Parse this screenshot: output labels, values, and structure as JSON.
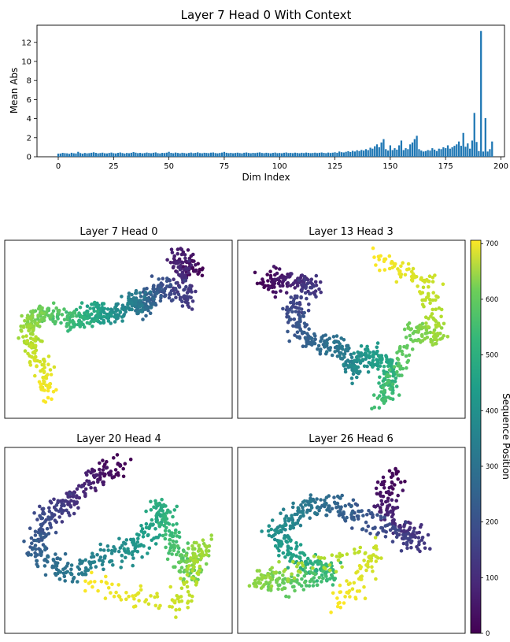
{
  "chart_data": [
    {
      "type": "bar",
      "title": "Layer 7 Head 0 With Context",
      "xlabel": "Dim Index",
      "ylabel": "Mean Abs",
      "xlim": [
        -9.6,
        201.6
      ],
      "ylim": [
        0,
        13.8
      ],
      "xticks": [
        0,
        25,
        50,
        75,
        100,
        125,
        150,
        175,
        200
      ],
      "yticks": [
        0,
        2,
        4,
        6,
        8,
        10,
        12
      ],
      "bar_color": "#1f77b4",
      "x": "0..191",
      "values": [
        0.33,
        0.34,
        0.41,
        0.38,
        0.36,
        0.31,
        0.42,
        0.37,
        0.35,
        0.52,
        0.39,
        0.33,
        0.4,
        0.36,
        0.38,
        0.42,
        0.47,
        0.41,
        0.36,
        0.39,
        0.43,
        0.37,
        0.35,
        0.4,
        0.44,
        0.38,
        0.35,
        0.41,
        0.45,
        0.39,
        0.34,
        0.4,
        0.37,
        0.42,
        0.49,
        0.43,
        0.38,
        0.41,
        0.36,
        0.39,
        0.44,
        0.4,
        0.37,
        0.42,
        0.46,
        0.38,
        0.35,
        0.41,
        0.39,
        0.43,
        0.52,
        0.41,
        0.37,
        0.44,
        0.4,
        0.36,
        0.42,
        0.39,
        0.35,
        0.4,
        0.44,
        0.38,
        0.41,
        0.46,
        0.39,
        0.37,
        0.42,
        0.4,
        0.38,
        0.43,
        0.45,
        0.39,
        0.36,
        0.4,
        0.44,
        0.51,
        0.42,
        0.38,
        0.41,
        0.37,
        0.4,
        0.43,
        0.39,
        0.36,
        0.42,
        0.45,
        0.4,
        0.37,
        0.41,
        0.39,
        0.43,
        0.46,
        0.4,
        0.38,
        0.42,
        0.39,
        0.36,
        0.41,
        0.44,
        0.38,
        0.4,
        0.37,
        0.42,
        0.45,
        0.39,
        0.41,
        0.38,
        0.43,
        0.4,
        0.37,
        0.42,
        0.39,
        0.44,
        0.41,
        0.38,
        0.4,
        0.43,
        0.39,
        0.42,
        0.45,
        0.41,
        0.38,
        0.44,
        0.4,
        0.43,
        0.47,
        0.42,
        0.55,
        0.48,
        0.45,
        0.52,
        0.58,
        0.5,
        0.62,
        0.55,
        0.68,
        0.6,
        0.72,
        0.65,
        0.8,
        0.7,
        0.95,
        0.85,
        1.1,
        1.3,
        1.0,
        1.5,
        1.85,
        0.8,
        0.65,
        1.2,
        0.7,
        0.9,
        0.75,
        1.2,
        1.7,
        0.7,
        0.9,
        0.8,
        1.3,
        1.5,
        1.85,
        2.2,
        0.8,
        0.65,
        0.55,
        0.6,
        0.7,
        0.65,
        0.9,
        0.75,
        0.6,
        0.85,
        0.8,
        1.0,
        0.9,
        1.2,
        0.85,
        1.0,
        1.15,
        1.3,
        1.6,
        1.15,
        2.5,
        1.05,
        1.4,
        0.85,
        1.7,
        4.6,
        1.55,
        0.6,
        13.2,
        0.55,
        4.05,
        0.55,
        0.8,
        1.6
      ]
    },
    {
      "type": "scatter",
      "panels": [
        {
          "title": "Layer 7  Head 0"
        },
        {
          "title": "Layer 13  Head 3"
        },
        {
          "title": "Layer 20  Head 4"
        },
        {
          "title": "Layer 26  Head 6"
        }
      ],
      "points_per_panel": 700,
      "color_by": "sequence position",
      "colormap": "viridis",
      "colorbar": {
        "label": "Sequence Position",
        "min": 0,
        "max": 706,
        "ticks": [
          0,
          100,
          200,
          300,
          400,
          500,
          600,
          700
        ]
      }
    }
  ]
}
